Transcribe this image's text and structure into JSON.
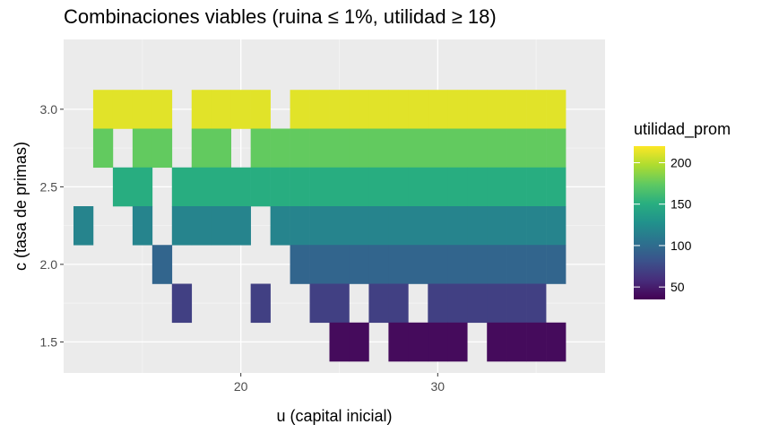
{
  "chart_data": {
    "type": "heatmap",
    "title": "Combinaciones viables (ruina ≤ 1%, utilidad ≥ 18)",
    "xlabel": "u (capital inicial)",
    "ylabel": "c (tasa de primas)",
    "x_ticks": [
      20,
      30
    ],
    "y_ticks": [
      1.5,
      2.0,
      2.5,
      3.0
    ],
    "y_tick_labels": [
      "1.5",
      "2.0",
      "2.5",
      "3.0"
    ],
    "xlim": [
      11,
      38.5
    ],
    "ylim": [
      1.3,
      3.45
    ],
    "tile_width": 1,
    "tile_height": 0.25,
    "grid": true,
    "legend": {
      "title": "utilidad_prom",
      "position": "right",
      "ticks": [
        50,
        100,
        150,
        200
      ],
      "range": [
        35,
        220
      ]
    },
    "rows": [
      {
        "c": 3.0,
        "value": 212,
        "x": [
          13,
          14,
          15,
          16,
          18,
          19,
          20,
          21,
          23,
          24,
          25,
          26,
          27,
          28,
          29,
          30,
          31,
          32,
          33,
          34,
          35,
          36
        ]
      },
      {
        "c": 2.75,
        "value": 175,
        "x": [
          13,
          15,
          16,
          18,
          19,
          21,
          22,
          23,
          24,
          25,
          26,
          27,
          28,
          29,
          30,
          31,
          32,
          33,
          34,
          35,
          36
        ]
      },
      {
        "c": 2.5,
        "value": 150,
        "x": [
          14,
          15,
          17,
          18,
          19,
          20,
          21,
          22,
          23,
          24,
          25,
          26,
          27,
          28,
          29,
          30,
          31,
          32,
          33,
          34,
          35,
          36
        ]
      },
      {
        "c": 2.25,
        "value": 118,
        "x": [
          12,
          15,
          17,
          18,
          19,
          20,
          22,
          23,
          24,
          25,
          26,
          27,
          28,
          29,
          30,
          31,
          32,
          33,
          34,
          35,
          36
        ]
      },
      {
        "c": 2.0,
        "value": 95,
        "x": [
          16,
          23,
          24,
          25,
          26,
          27,
          28,
          29,
          30,
          31,
          32,
          33,
          34,
          35,
          36
        ]
      },
      {
        "c": 1.75,
        "value": 70,
        "x": [
          17,
          21,
          24,
          25,
          27,
          28,
          30,
          31,
          32,
          33,
          34,
          35
        ]
      },
      {
        "c": 1.5,
        "value": 40,
        "x": [
          25,
          26,
          28,
          29,
          30,
          31,
          33,
          34,
          35,
          36
        ]
      }
    ]
  }
}
